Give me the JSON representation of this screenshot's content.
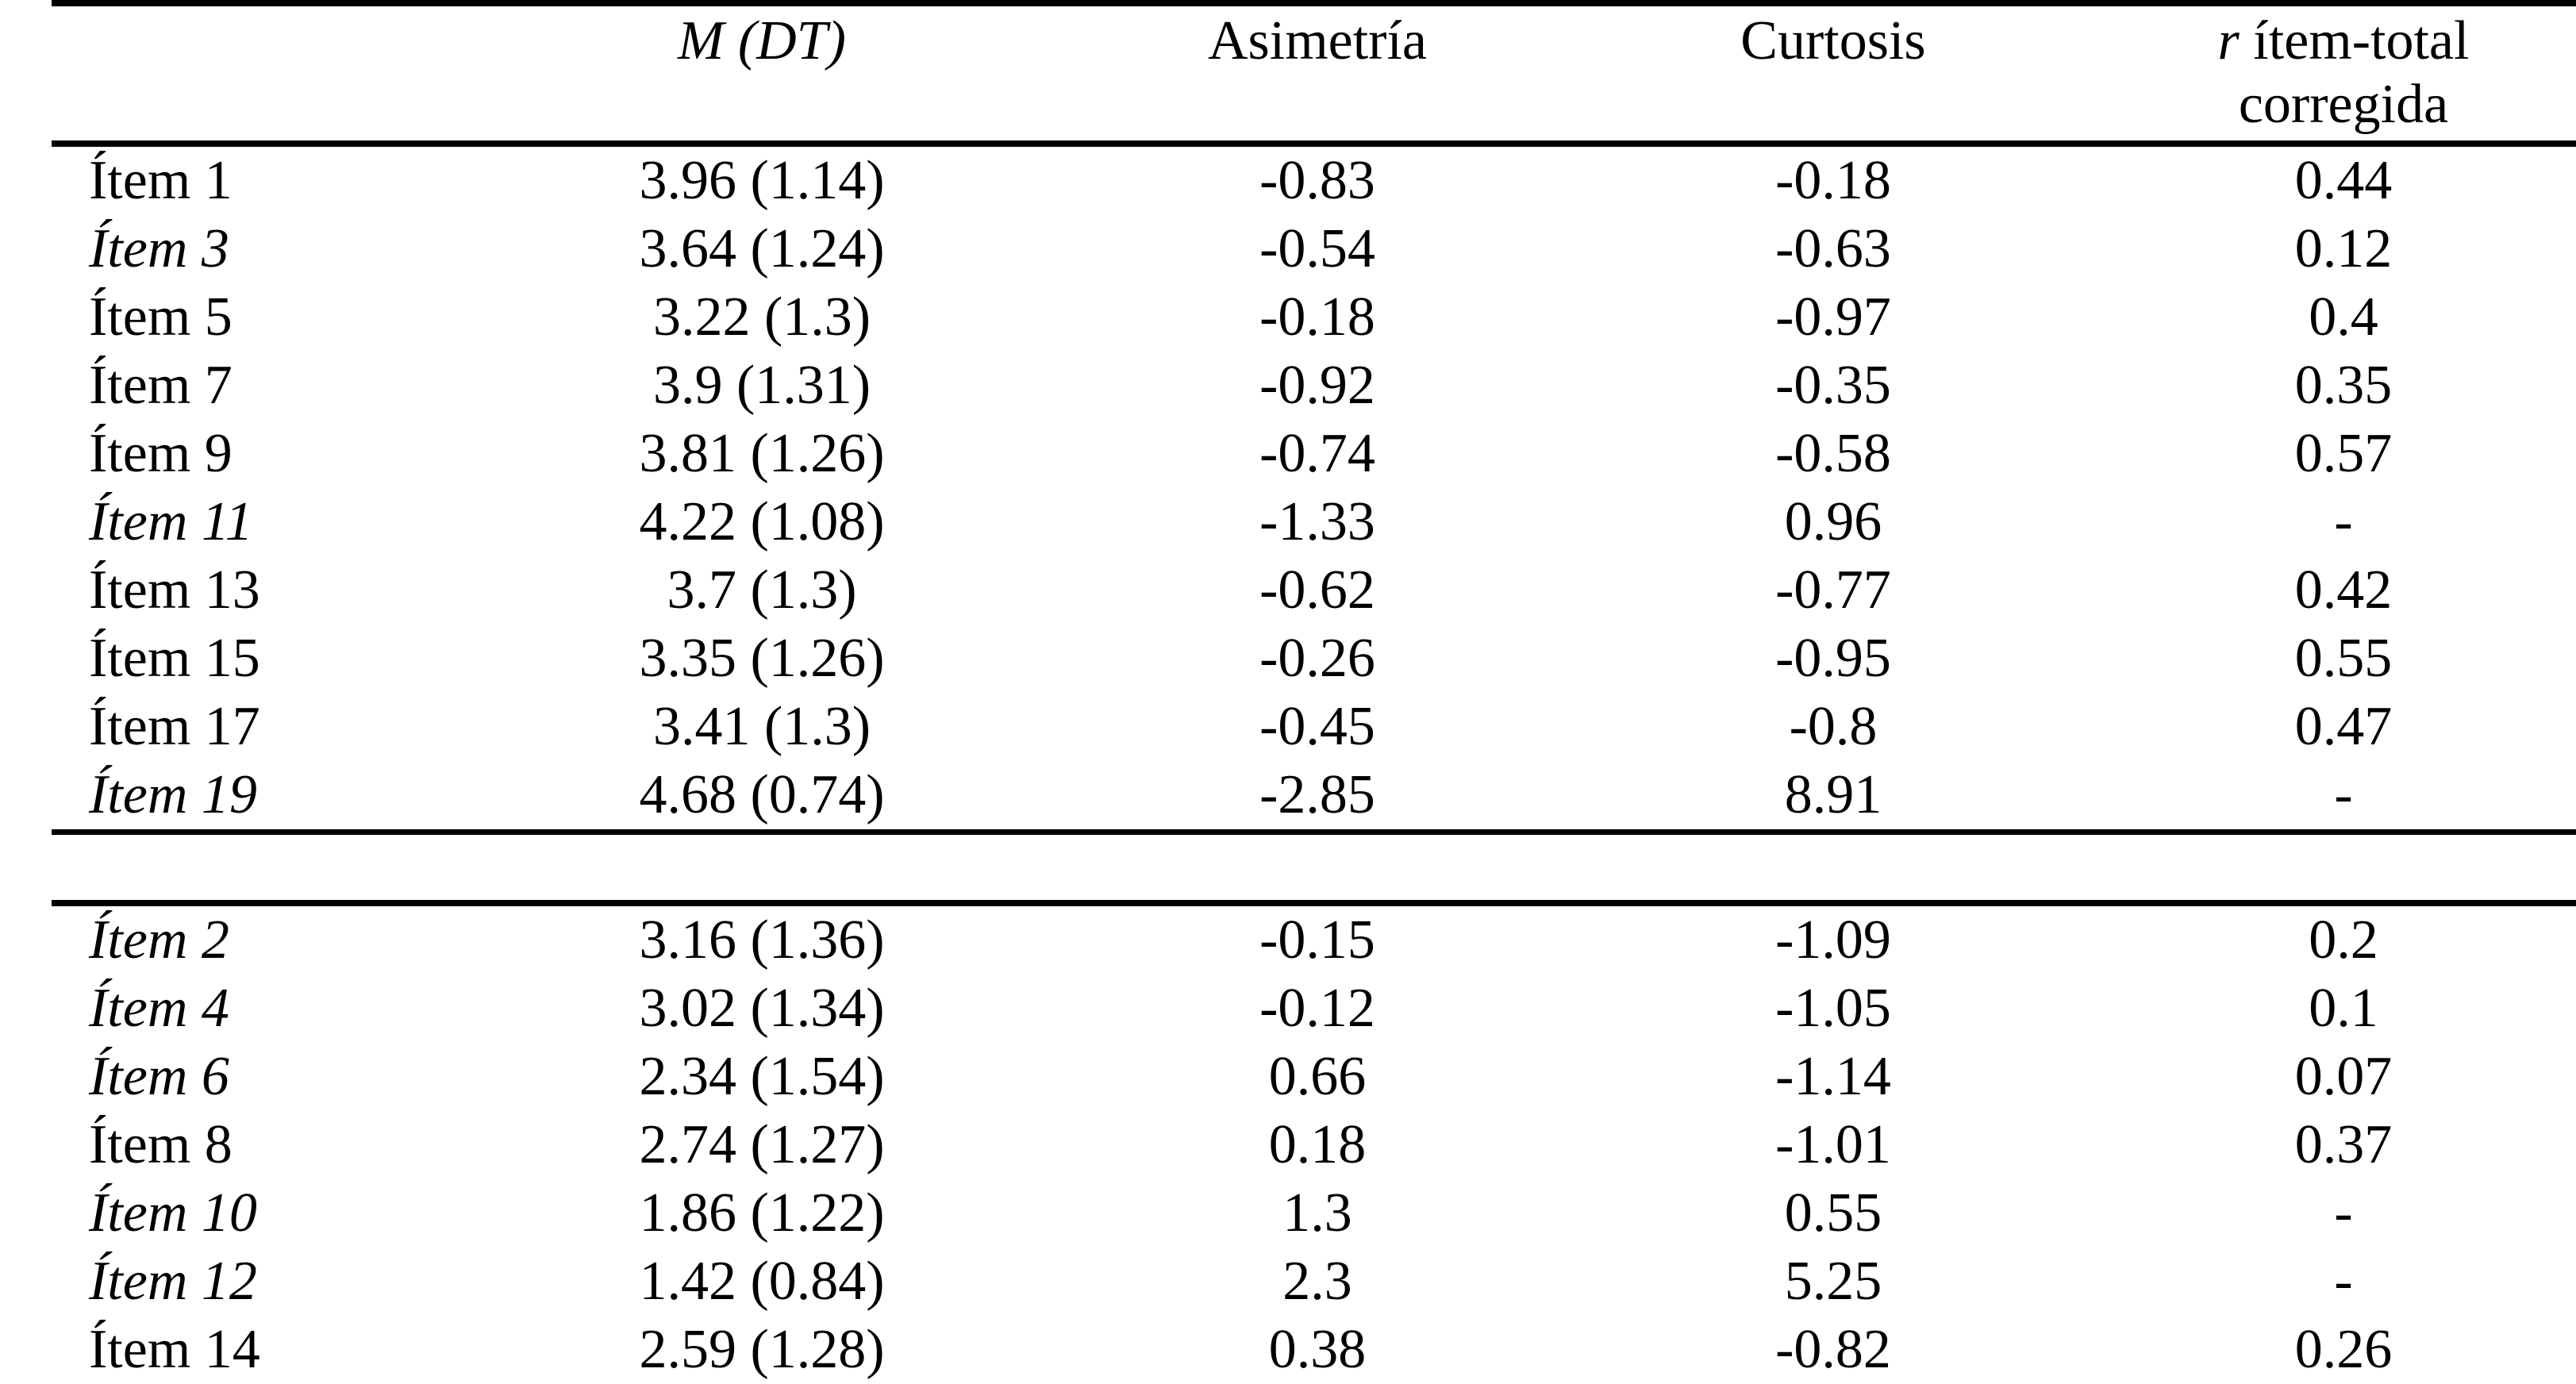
{
  "table": {
    "header": {
      "item_col": "",
      "m_dt": "M (DT)",
      "asimetria": "Asimetría",
      "curtosis": "Curtosis",
      "r_symbol": "r",
      "r_line1_rest": " ítem-total",
      "r_line2": "corregida"
    },
    "sections": [
      {
        "rows": [
          {
            "label": "Ítem 1",
            "italic": false,
            "m_dt": "3.96 (1.14)",
            "asimetria": "-0.83",
            "curtosis": "-0.18",
            "r": "0.44"
          },
          {
            "label": "Ítem 3",
            "italic": true,
            "m_dt": "3.64 (1.24)",
            "asimetria": "-0.54",
            "curtosis": "-0.63",
            "r": "0.12"
          },
          {
            "label": "Ítem 5",
            "italic": false,
            "m_dt": "3.22 (1.3)",
            "asimetria": "-0.18",
            "curtosis": "-0.97",
            "r": "0.4"
          },
          {
            "label": "Ítem 7",
            "italic": false,
            "m_dt": "3.9 (1.31)",
            "asimetria": "-0.92",
            "curtosis": "-0.35",
            "r": "0.35"
          },
          {
            "label": "Ítem 9",
            "italic": false,
            "m_dt": "3.81 (1.26)",
            "asimetria": "-0.74",
            "curtosis": "-0.58",
            "r": "0.57"
          },
          {
            "label": "Ítem 11",
            "italic": true,
            "m_dt": "4.22 (1.08)",
            "asimetria": "-1.33",
            "curtosis": "0.96",
            "r": "-"
          },
          {
            "label": "Ítem 13",
            "italic": false,
            "m_dt": "3.7 (1.3)",
            "asimetria": "-0.62",
            "curtosis": "-0.77",
            "r": "0.42"
          },
          {
            "label": "Ítem 15",
            "italic": false,
            "m_dt": "3.35 (1.26)",
            "asimetria": "-0.26",
            "curtosis": "-0.95",
            "r": "0.55"
          },
          {
            "label": "Ítem 17",
            "italic": false,
            "m_dt": "3.41 (1.3)",
            "asimetria": "-0.45",
            "curtosis": "-0.8",
            "r": "0.47"
          },
          {
            "label": "Ítem 19",
            "italic": true,
            "m_dt": "4.68 (0.74)",
            "asimetria": "-2.85",
            "curtosis": "8.91",
            "r": "-"
          }
        ]
      },
      {
        "rows": [
          {
            "label": "Ítem 2",
            "italic": true,
            "m_dt": "3.16 (1.36)",
            "asimetria": "-0.15",
            "curtosis": "-1.09",
            "r": "0.2"
          },
          {
            "label": "Ítem 4",
            "italic": true,
            "m_dt": "3.02 (1.34)",
            "asimetria": "-0.12",
            "curtosis": "-1.05",
            "r": "0.1"
          },
          {
            "label": "Ítem 6",
            "italic": true,
            "m_dt": "2.34 (1.54)",
            "asimetria": "0.66",
            "curtosis": "-1.14",
            "r": "0.07"
          },
          {
            "label": "Ítem 8",
            "italic": false,
            "m_dt": "2.74 (1.27)",
            "asimetria": "0.18",
            "curtosis": "-1.01",
            "r": "0.37"
          },
          {
            "label": "Ítem 10",
            "italic": true,
            "m_dt": "1.86 (1.22)",
            "asimetria": "1.3",
            "curtosis": "0.55",
            "r": "-"
          },
          {
            "label": "Ítem 12",
            "italic": true,
            "m_dt": "1.42 (0.84)",
            "asimetria": "2.3",
            "curtosis": "5.25",
            "r": "-"
          },
          {
            "label": "Ítem 14",
            "italic": false,
            "m_dt": "2.59 (1.28)",
            "asimetria": "0.38",
            "curtosis": "-0.82",
            "r": "0.26"
          }
        ]
      }
    ]
  }
}
